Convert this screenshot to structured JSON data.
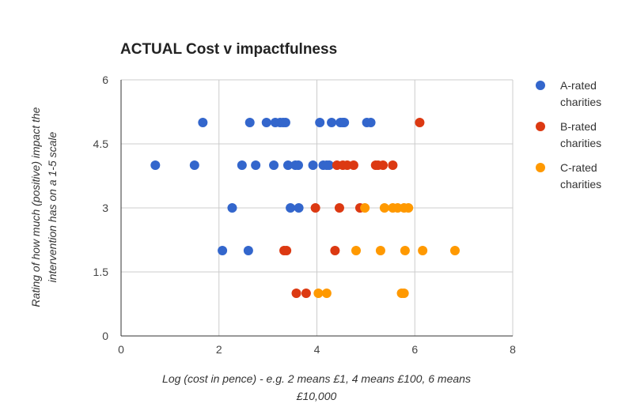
{
  "chart_data": {
    "type": "scatter",
    "title": "ACTUAL Cost v impactfulness",
    "xlabel": [
      "Log (cost in pence) - e.g. 2 means £1, 4 means £100, 6 means",
      "£10,000"
    ],
    "ylabel": [
      "Rating of how much (positive) impact the",
      "intervention has on a 1-5 scale"
    ],
    "xlim": [
      0,
      8
    ],
    "ylim": [
      0,
      6
    ],
    "xticks": [
      "0",
      "2",
      "4",
      "6",
      "8"
    ],
    "yticks": [
      "0",
      "1.5",
      "3",
      "4.5",
      "6"
    ],
    "xtick_values": [
      0,
      2,
      4,
      6,
      8
    ],
    "ytick_values": [
      0,
      1.5,
      3,
      4.5,
      6
    ],
    "grid": true,
    "legend_position": "right",
    "series": [
      {
        "name": [
          "A-rated",
          "charities"
        ],
        "color": "#3366cc",
        "points": [
          [
            0.7,
            4
          ],
          [
            1.5,
            4
          ],
          [
            1.67,
            5
          ],
          [
            2.07,
            2
          ],
          [
            2.27,
            3
          ],
          [
            2.47,
            4
          ],
          [
            2.6,
            2
          ],
          [
            2.63,
            5
          ],
          [
            2.75,
            4
          ],
          [
            2.97,
            5
          ],
          [
            3.12,
            4
          ],
          [
            3.15,
            5
          ],
          [
            3.25,
            5
          ],
          [
            3.31,
            5
          ],
          [
            3.36,
            5
          ],
          [
            3.41,
            4
          ],
          [
            3.46,
            3
          ],
          [
            3.56,
            4
          ],
          [
            3.62,
            4
          ],
          [
            3.63,
            3
          ],
          [
            3.92,
            4
          ],
          [
            4.06,
            5
          ],
          [
            4.13,
            4
          ],
          [
            4.2,
            4
          ],
          [
            4.25,
            4
          ],
          [
            4.3,
            5
          ],
          [
            4.48,
            5
          ],
          [
            4.53,
            5
          ],
          [
            4.56,
            5
          ],
          [
            5.02,
            5
          ],
          [
            5.1,
            5
          ]
        ]
      },
      {
        "name": [
          "B-rated",
          "charities"
        ],
        "color": "#dc3912",
        "points": [
          [
            3.33,
            2
          ],
          [
            3.38,
            2
          ],
          [
            3.58,
            1
          ],
          [
            3.78,
            1
          ],
          [
            3.97,
            3
          ],
          [
            4.37,
            2
          ],
          [
            4.41,
            4
          ],
          [
            4.46,
            3
          ],
          [
            4.53,
            4
          ],
          [
            4.62,
            4
          ],
          [
            4.75,
            4
          ],
          [
            4.88,
            3
          ],
          [
            5.2,
            4
          ],
          [
            5.25,
            4
          ],
          [
            5.35,
            4
          ],
          [
            5.55,
            4
          ],
          [
            6.1,
            5
          ]
        ]
      },
      {
        "name": [
          "C-rated",
          "charities"
        ],
        "color": "#ff9900",
        "points": [
          [
            4.03,
            1
          ],
          [
            4.2,
            1
          ],
          [
            4.8,
            2
          ],
          [
            4.98,
            3
          ],
          [
            5.3,
            2
          ],
          [
            5.38,
            3
          ],
          [
            5.55,
            3
          ],
          [
            5.65,
            3
          ],
          [
            5.73,
            1
          ],
          [
            5.78,
            1
          ],
          [
            5.78,
            3
          ],
          [
            5.8,
            2
          ],
          [
            5.87,
            3
          ],
          [
            6.16,
            2
          ],
          [
            6.82,
            2
          ]
        ]
      }
    ]
  }
}
